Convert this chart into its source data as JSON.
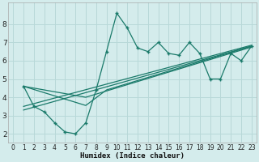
{
  "xlabel": "Humidex (Indice chaleur)",
  "bg_color": "#d4ecec",
  "grid_color": "#b8d8d8",
  "line_color": "#1a7a6a",
  "xlim": [
    -0.5,
    23.5
  ],
  "ylim": [
    1.5,
    9.2
  ],
  "yticks": [
    2,
    3,
    4,
    5,
    6,
    7,
    8
  ],
  "xticks": [
    0,
    1,
    2,
    3,
    4,
    5,
    6,
    7,
    8,
    9,
    10,
    11,
    12,
    13,
    14,
    15,
    16,
    17,
    18,
    19,
    20,
    21,
    22,
    23
  ],
  "main_x": [
    1,
    2,
    3,
    4,
    5,
    6,
    7,
    8,
    9,
    10,
    11,
    12,
    13,
    14,
    15,
    16,
    17,
    18,
    19,
    20,
    21,
    22,
    23
  ],
  "main_y": [
    4.6,
    3.5,
    3.2,
    2.6,
    2.1,
    2.0,
    2.6,
    4.4,
    6.5,
    8.6,
    7.8,
    6.7,
    6.5,
    7.0,
    6.4,
    6.3,
    7.0,
    6.4,
    5.0,
    5.0,
    6.4,
    6.0,
    6.8
  ],
  "reg_lines": [
    {
      "x": [
        1,
        23
      ],
      "y": [
        3.3,
        6.8
      ]
    },
    {
      "x": [
        1,
        23
      ],
      "y": [
        3.5,
        6.85
      ]
    },
    {
      "x": [
        1,
        7,
        23
      ],
      "y": [
        4.6,
        4.0,
        6.75
      ]
    },
    {
      "x": [
        1,
        7,
        9,
        23
      ],
      "y": [
        4.6,
        3.55,
        4.4,
        6.8
      ]
    }
  ]
}
